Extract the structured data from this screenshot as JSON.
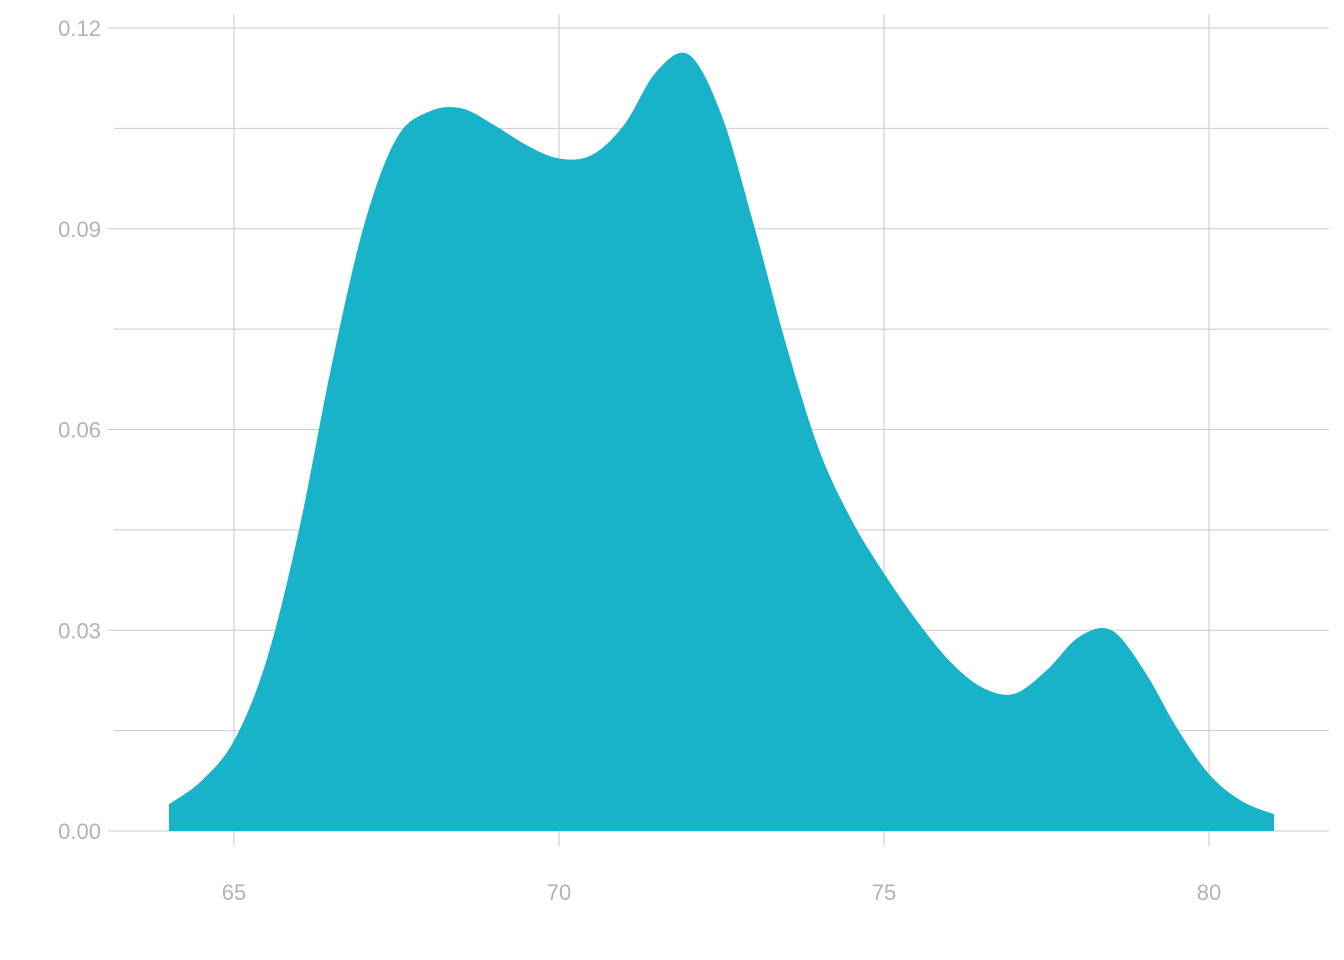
{
  "chart_data": {
    "type": "area",
    "subtype": "density",
    "title": "",
    "xlabel": "",
    "ylabel": "",
    "xlim": [
      63.2,
      81.9
    ],
    "ylim": [
      0,
      0.122
    ],
    "x_ticks": [
      65,
      70,
      75,
      80
    ],
    "x_tick_labels": [
      "65",
      "70",
      "75",
      "80"
    ],
    "y_ticks": [
      0,
      0.03,
      0.06,
      0.09,
      0.12
    ],
    "y_tick_labels": [
      "0.00",
      "0.03",
      "0.06",
      "0.09",
      "0.12"
    ],
    "y_minor_ticks": [
      0.015,
      0.045,
      0.075,
      0.105
    ],
    "grid": true,
    "legend": "none",
    "fill_color": "#18B3C9",
    "grid_color": "#CCCCCC",
    "tick_label_color": "#B3B3B3",
    "series": [
      {
        "x": [
          64,
          64.5,
          65,
          65.5,
          66,
          66.5,
          67,
          67.5,
          68,
          68.5,
          69,
          69.5,
          70,
          70.5,
          71,
          71.5,
          72,
          72.5,
          73,
          73.5,
          74,
          74.5,
          75,
          75.5,
          76,
          76.5,
          77,
          77.5,
          78,
          78.5,
          79,
          79.5,
          80,
          80.5,
          81
        ],
        "y": [
          0.004,
          0.0075,
          0.0135,
          0.0255,
          0.045,
          0.0695,
          0.0905,
          0.1035,
          0.1075,
          0.108,
          0.1055,
          0.1025,
          0.1005,
          0.101,
          0.1055,
          0.1135,
          0.116,
          0.107,
          0.0905,
          0.0725,
          0.057,
          0.0465,
          0.0385,
          0.0315,
          0.0255,
          0.0215,
          0.0205,
          0.024,
          0.029,
          0.03,
          0.024,
          0.0155,
          0.0085,
          0.0045,
          0.0025
        ]
      }
    ]
  }
}
